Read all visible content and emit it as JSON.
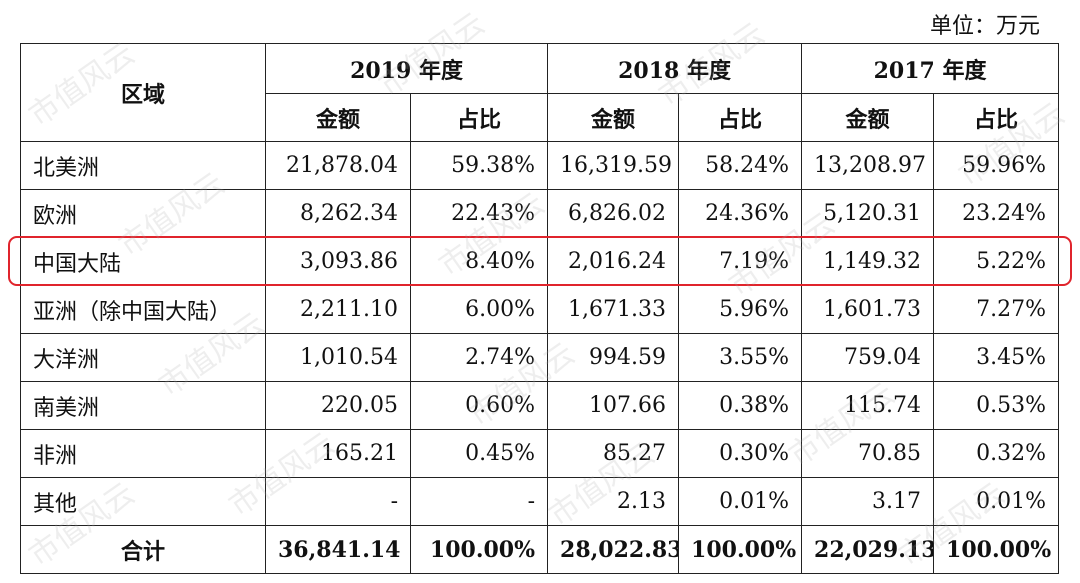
{
  "unit_label": "单位：万元",
  "header": {
    "region": "区域",
    "years": [
      "2019 年度",
      "2018 年度",
      "2017 年度"
    ],
    "amount": "金额",
    "share": "占比"
  },
  "rows": [
    {
      "region": "北美洲",
      "v": [
        "21,878.04",
        "59.38%",
        "16,319.59",
        "58.24%",
        "13,208.97",
        "59.96%"
      ]
    },
    {
      "region": "欧洲",
      "v": [
        "8,262.34",
        "22.43%",
        "6,826.02",
        "24.36%",
        "5,120.31",
        "23.24%"
      ]
    },
    {
      "region": "中国大陆",
      "v": [
        "3,093.86",
        "8.40%",
        "2,016.24",
        "7.19%",
        "1,149.32",
        "5.22%"
      ]
    },
    {
      "region": "亚洲（除中国大陆）",
      "v": [
        "2,211.10",
        "6.00%",
        "1,671.33",
        "5.96%",
        "1,601.73",
        "7.27%"
      ]
    },
    {
      "region": "大洋洲",
      "v": [
        "1,010.54",
        "2.74%",
        "994.59",
        "3.55%",
        "759.04",
        "3.45%"
      ]
    },
    {
      "region": "南美洲",
      "v": [
        "220.05",
        "0.60%",
        "107.66",
        "0.38%",
        "115.74",
        "0.53%"
      ]
    },
    {
      "region": "非洲",
      "v": [
        "165.21",
        "0.45%",
        "85.27",
        "0.30%",
        "70.85",
        "0.32%"
      ]
    },
    {
      "region": "其他",
      "v": [
        "-",
        "-",
        "2.13",
        "0.01%",
        "3.17",
        "0.01%"
      ]
    }
  ],
  "total": {
    "region": "合计",
    "v": [
      "36,841.14",
      "100.00%",
      "28,022.83",
      "100.00%",
      "22,029.13",
      "100.00%"
    ]
  },
  "watermark": "市值风云",
  "colors": {
    "highlight": "#e0242c",
    "border": "#222222"
  }
}
